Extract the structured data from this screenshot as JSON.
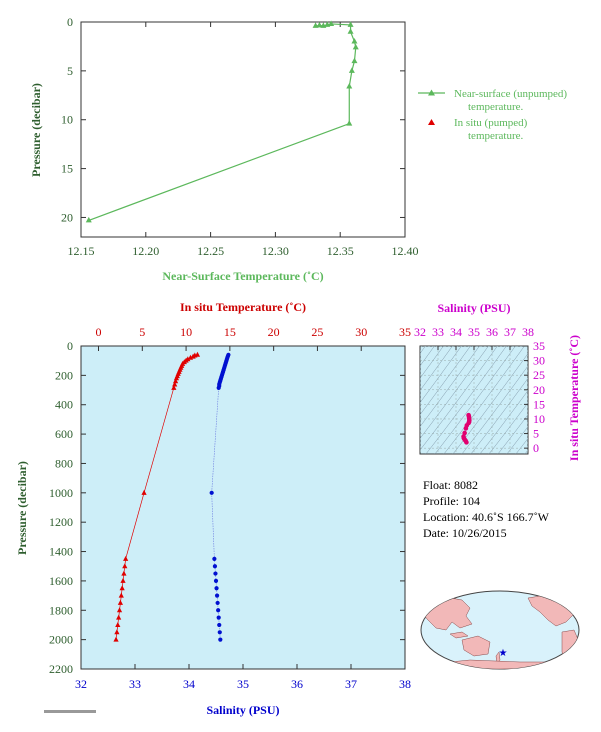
{
  "chart_data": [
    {
      "type": "line",
      "xlabel": "Near-Surface Temperature (˚C)",
      "ylabel": "Pressure (decibar)",
      "xlim": [
        12.15,
        12.4
      ],
      "ylim": [
        0,
        22
      ],
      "y_inverted": true,
      "xticks": [
        "12.15",
        "12.20",
        "12.25",
        "12.30",
        "12.35",
        "12.40"
      ],
      "yticks": [
        "0",
        "5",
        "10",
        "15",
        "20"
      ],
      "grid": false,
      "legend_position": "right",
      "color": "#5cb85c",
      "series": [
        {
          "name": "Near-surface (unpumped) temperature.",
          "points": [
            [
              12.331,
              0.4
            ],
            [
              12.334,
              0.35
            ],
            [
              12.337,
              0.4
            ],
            [
              12.34,
              0.3
            ],
            [
              12.343,
              0.2
            ],
            [
              12.358,
              0.3
            ],
            [
              12.358,
              1.0
            ],
            [
              12.361,
              2.0
            ],
            [
              12.362,
              2.6
            ],
            [
              12.361,
              4.0
            ],
            [
              12.359,
              5.0
            ],
            [
              12.357,
              6.6
            ],
            [
              12.357,
              10.4
            ],
            [
              12.156,
              20.3
            ]
          ]
        },
        {
          "name": "In situ (pumped) temperature.",
          "points": []
        }
      ]
    },
    {
      "type": "line",
      "title": "In situ Temperature (˚C)",
      "xlabel": "Salinity (PSU)",
      "ylabel": "Pressure (decibar)",
      "top_axis": {
        "range": [
          -2,
          35
        ],
        "ticks": [
          "0",
          "5",
          "10",
          "15",
          "20",
          "25",
          "30",
          "35"
        ],
        "color": "#cc0000"
      },
      "bottom_axis": {
        "range": [
          32,
          38
        ],
        "ticks": [
          "32",
          "33",
          "34",
          "35",
          "36",
          "37",
          "38"
        ],
        "color": "#0000cc"
      },
      "ylim": [
        0,
        2200
      ],
      "y_inverted": true,
      "yticks": [
        "0",
        "200",
        "400",
        "600",
        "800",
        "1000",
        "1200",
        "1400",
        "1600",
        "1800",
        "2000",
        "2200"
      ],
      "background": "#cdeef8",
      "series": [
        {
          "name": "Temperature",
          "axis": "top",
          "color": "#e00000",
          "points": [
            [
              11.3,
              60
            ],
            [
              11.0,
              65
            ],
            [
              10.8,
              72
            ],
            [
              10.5,
              80
            ],
            [
              10.2,
              90
            ],
            [
              10.0,
              100
            ],
            [
              9.8,
              110
            ],
            [
              9.6,
              122
            ],
            [
              9.5,
              135
            ],
            [
              9.4,
              148
            ],
            [
              9.3,
              162
            ],
            [
              9.2,
              176
            ],
            [
              9.1,
              190
            ],
            [
              9.0,
              205
            ],
            [
              8.9,
              220
            ],
            [
              8.8,
              240
            ],
            [
              8.7,
              262
            ],
            [
              8.6,
              285
            ],
            [
              5.2,
              1000
            ],
            [
              3.1,
              1450
            ],
            [
              3.0,
              1500
            ],
            [
              2.9,
              1550
            ],
            [
              2.8,
              1600
            ],
            [
              2.7,
              1650
            ],
            [
              2.6,
              1700
            ],
            [
              2.5,
              1750
            ],
            [
              2.4,
              1800
            ],
            [
              2.3,
              1850
            ],
            [
              2.2,
              1900
            ],
            [
              2.1,
              1950
            ],
            [
              2.0,
              2000
            ]
          ]
        },
        {
          "name": "Salinity",
          "axis": "bottom",
          "color": "#0010d0",
          "points": [
            [
              34.73,
              60
            ],
            [
              34.72,
              70
            ],
            [
              34.71,
              80
            ],
            [
              34.7,
              92
            ],
            [
              34.69,
              104
            ],
            [
              34.68,
              116
            ],
            [
              34.67,
              128
            ],
            [
              34.66,
              140
            ],
            [
              34.65,
              152
            ],
            [
              34.64,
              164
            ],
            [
              34.63,
              176
            ],
            [
              34.62,
              188
            ],
            [
              34.61,
              200
            ],
            [
              34.6,
              212
            ],
            [
              34.59,
              224
            ],
            [
              34.58,
              236
            ],
            [
              34.57,
              248
            ],
            [
              34.56,
              260
            ],
            [
              34.56,
              272
            ],
            [
              34.55,
              285
            ],
            [
              34.42,
              1000
            ],
            [
              34.47,
              1450
            ],
            [
              34.48,
              1500
            ],
            [
              34.49,
              1550
            ],
            [
              34.5,
              1600
            ],
            [
              34.51,
              1650
            ],
            [
              34.52,
              1700
            ],
            [
              34.53,
              1750
            ],
            [
              34.54,
              1800
            ],
            [
              34.55,
              1850
            ],
            [
              34.56,
              1900
            ],
            [
              34.57,
              1950
            ],
            [
              34.58,
              2000
            ]
          ]
        }
      ]
    },
    {
      "type": "scatter",
      "title": "Salinity (PSU)",
      "ylabel": "In situ Temperature (˚C)",
      "xlim": [
        32,
        38
      ],
      "ylim": [
        -2,
        35
      ],
      "xticks": [
        "32",
        "33",
        "34",
        "35",
        "36",
        "37",
        "38"
      ],
      "yticks": [
        "0",
        "5",
        "10",
        "15",
        "20",
        "25",
        "30",
        "35"
      ],
      "color": "#e0006f",
      "points": [
        [
          34.7,
          11.3
        ],
        [
          34.72,
          10.8
        ],
        [
          34.73,
          10.2
        ],
        [
          34.74,
          9.6
        ],
        [
          34.73,
          9.0
        ],
        [
          34.7,
          8.6
        ],
        [
          34.6,
          7.8
        ],
        [
          34.55,
          6.8
        ],
        [
          34.48,
          5.2
        ],
        [
          34.42,
          4.0
        ],
        [
          34.43,
          3.5
        ],
        [
          34.47,
          3.1
        ],
        [
          34.5,
          2.8
        ],
        [
          34.54,
          2.5
        ],
        [
          34.58,
          2.0
        ]
      ]
    }
  ],
  "info": {
    "float": "Float:  8082",
    "profile": "Profile:  104",
    "location": "Location:  40.6˚S  166.7˚W",
    "date": "Date:  10/26/2015"
  },
  "colors": {
    "top_chart": "#5cb85c",
    "temperature": "#cc0000",
    "salinity": "#0000cc",
    "ts_diagram": "#cc00cc",
    "axis_green": "#2e5e2e",
    "plot_bg": "#cdeef8"
  },
  "map": {
    "marker": "star-icon",
    "marker_color": "#0000cc",
    "projection": "Pacific-centered world map"
  }
}
